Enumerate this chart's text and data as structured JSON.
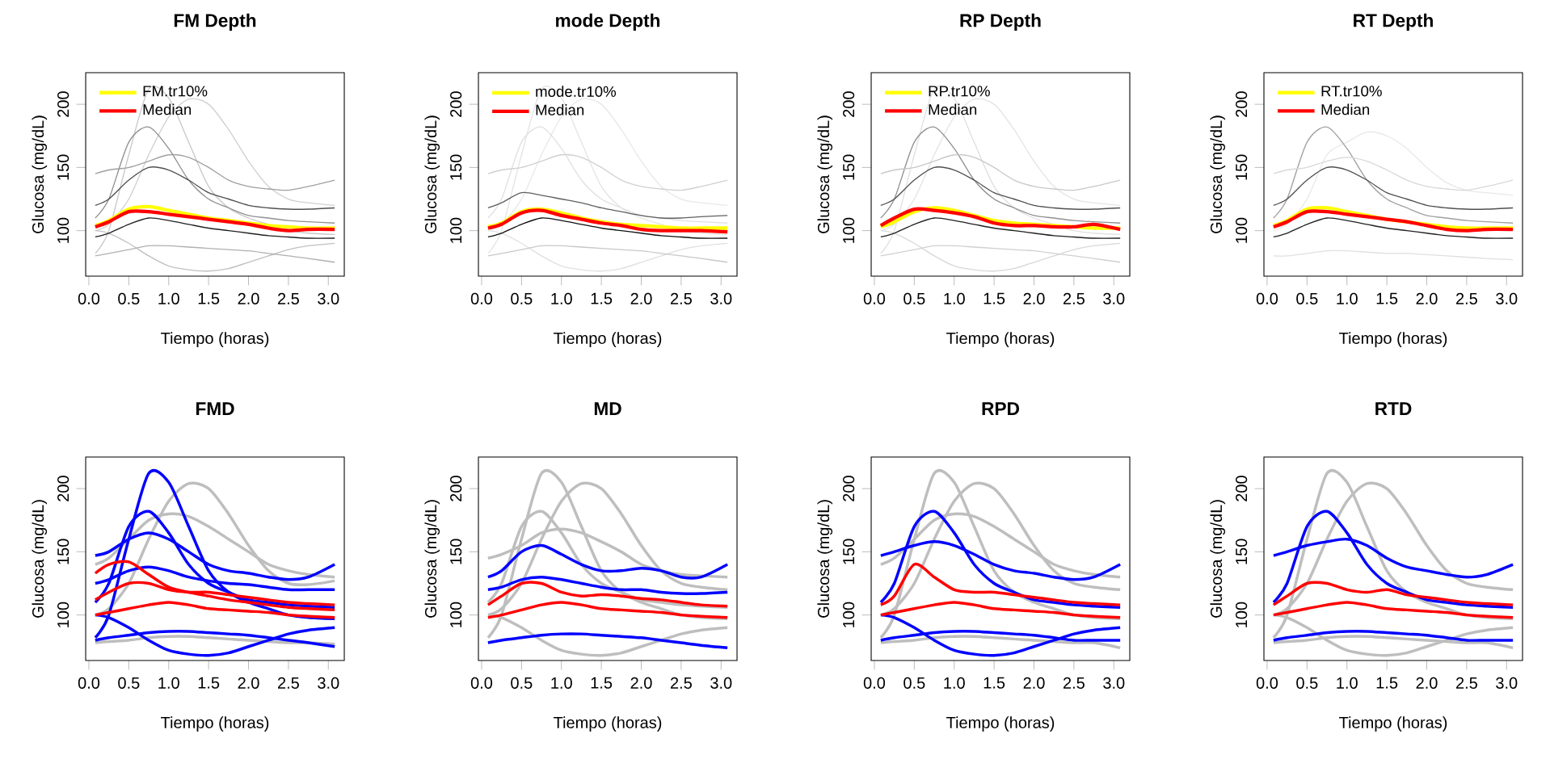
{
  "chart_data": [
    {
      "type": "line",
      "title": "FM Depth",
      "xlabel": "Tiempo (horas)",
      "ylabel": "Glucosa (mg/dL)",
      "xlim": [
        -0.04,
        3.2
      ],
      "ylim": [
        64,
        225
      ],
      "xticks": [
        {
          "value": 0,
          "label": "0.0"
        },
        0.5,
        {
          "value": 1,
          "label": "1.0"
        },
        1.5,
        {
          "value": 2,
          "label": "2.0"
        },
        2.5,
        {
          "value": 3,
          "label": "3.0"
        }
      ],
      "yticks": [
        100,
        150,
        200
      ],
      "legend": "top left",
      "x": [
        0.08,
        0.25,
        0.5,
        0.75,
        1.0,
        1.25,
        1.5,
        1.75,
        2.0,
        2.25,
        2.5,
        2.75,
        3.08
      ],
      "series": [
        {
          "color": "#c8c8c8",
          "values": [
            82,
            100,
            160,
            212,
            205,
            170,
            135,
            118,
            110,
            105,
            100,
            98,
            97
          ]
        },
        {
          "color": "#d0d0d0",
          "values": [
            100,
            105,
            125,
            160,
            190,
            204,
            200,
            180,
            155,
            135,
            125,
            122,
            120
          ]
        },
        {
          "color": "#c0c0c0",
          "values": [
            100,
            98,
            90,
            80,
            72,
            69,
            68,
            70,
            75,
            80,
            85,
            88,
            90
          ]
        },
        {
          "color": "#909090",
          "values": [
            110,
            125,
            170,
            182,
            165,
            140,
            125,
            118,
            112,
            110,
            108,
            107,
            106
          ]
        },
        {
          "color": "#a0a0a0",
          "values": [
            145,
            148,
            150,
            155,
            160,
            158,
            150,
            140,
            135,
            133,
            132,
            135,
            140
          ]
        },
        {
          "color": "#b0b0b0",
          "values": [
            80,
            82,
            85,
            88,
            88,
            87,
            86,
            85,
            84,
            82,
            80,
            78,
            75
          ]
        },
        {
          "color": "#505050",
          "values": [
            120,
            125,
            140,
            150,
            148,
            140,
            130,
            125,
            120,
            118,
            117,
            117,
            118
          ]
        },
        {
          "color": "#202020",
          "values": [
            95,
            98,
            105,
            110,
            108,
            105,
            102,
            100,
            98,
            96,
            95,
            94,
            94
          ]
        },
        {
          "name": "FM.tr10%",
          "color": "#ffff00",
          "values": [
            104,
            108,
            117,
            119,
            116,
            113,
            110,
            108,
            106,
            104,
            103,
            102,
            102
          ]
        },
        {
          "name": "Median",
          "color": "#ff0000",
          "values": [
            103,
            107,
            115,
            115,
            113,
            111,
            109,
            107,
            105,
            102,
            100,
            101,
            101
          ]
        }
      ]
    },
    {
      "type": "line",
      "title": "mode Depth",
      "xlabel": "Tiempo (horas)",
      "ylabel": "Glucosa (mg/dL)",
      "xlim": [
        -0.04,
        3.2
      ],
      "ylim": [
        64,
        225
      ],
      "xticks": [
        {
          "value": 0,
          "label": "0.0"
        },
        0.5,
        {
          "value": 1,
          "label": "1.0"
        },
        1.5,
        {
          "value": 2,
          "label": "2.0"
        },
        2.5,
        {
          "value": 3,
          "label": "3.0"
        }
      ],
      "yticks": [
        100,
        150,
        200
      ],
      "legend": "top left",
      "x": [
        0.08,
        0.25,
        0.5,
        0.75,
        1.0,
        1.25,
        1.5,
        1.75,
        2.0,
        2.25,
        2.5,
        2.75,
        3.08
      ],
      "series": [
        {
          "color": "#e4e4e4",
          "values": [
            82,
            100,
            160,
            212,
            205,
            170,
            135,
            118,
            110,
            105,
            100,
            98,
            97
          ]
        },
        {
          "color": "#e8e8e8",
          "values": [
            100,
            105,
            125,
            160,
            190,
            204,
            200,
            180,
            155,
            135,
            125,
            122,
            120
          ]
        },
        {
          "color": "#e0e0e0",
          "values": [
            100,
            98,
            90,
            80,
            72,
            69,
            68,
            70,
            75,
            80,
            85,
            88,
            90
          ]
        },
        {
          "color": "#e0e0e0",
          "values": [
            110,
            125,
            170,
            182,
            165,
            140,
            125,
            118,
            112,
            110,
            108,
            107,
            106
          ]
        },
        {
          "color": "#d0d0d0",
          "values": [
            145,
            148,
            150,
            155,
            160,
            158,
            150,
            140,
            135,
            133,
            132,
            135,
            140
          ]
        },
        {
          "color": "#c8c8c8",
          "values": [
            80,
            82,
            85,
            88,
            88,
            87,
            86,
            85,
            84,
            82,
            80,
            78,
            75
          ]
        },
        {
          "color": "#606060",
          "values": [
            118,
            122,
            130,
            128,
            125,
            122,
            118,
            115,
            112,
            110,
            110,
            111,
            112
          ]
        },
        {
          "color": "#101010",
          "values": [
            95,
            98,
            105,
            110,
            108,
            105,
            102,
            100,
            98,
            96,
            95,
            94,
            94
          ]
        },
        {
          "name": "mode.tr10%",
          "color": "#ffff00",
          "values": [
            103,
            106,
            115,
            117,
            114,
            110,
            107,
            105,
            104,
            103,
            102,
            102,
            102
          ]
        },
        {
          "name": "Median",
          "color": "#ff0000",
          "values": [
            102,
            105,
            114,
            116,
            112,
            109,
            106,
            104,
            101,
            100,
            100,
            100,
            99
          ]
        }
      ]
    },
    {
      "type": "line",
      "title": "RP Depth",
      "xlabel": "Tiempo (horas)",
      "ylabel": "Glucosa (mg/dL)",
      "xlim": [
        -0.04,
        3.2
      ],
      "ylim": [
        64,
        225
      ],
      "xticks": [
        {
          "value": 0,
          "label": "0.0"
        },
        0.5,
        {
          "value": 1,
          "label": "1.0"
        },
        1.5,
        {
          "value": 2,
          "label": "2.0"
        },
        2.5,
        {
          "value": 3,
          "label": "3.0"
        }
      ],
      "yticks": [
        100,
        150,
        200
      ],
      "legend": "top left",
      "x": [
        0.08,
        0.25,
        0.5,
        0.75,
        1.0,
        1.25,
        1.5,
        1.75,
        2.0,
        2.25,
        2.5,
        2.75,
        3.08
      ],
      "series": [
        {
          "color": "#e0e0e0",
          "values": [
            82,
            100,
            160,
            212,
            205,
            170,
            135,
            118,
            110,
            105,
            100,
            98,
            97
          ]
        },
        {
          "color": "#e4e4e4",
          "values": [
            100,
            105,
            125,
            160,
            190,
            204,
            200,
            180,
            155,
            135,
            125,
            122,
            120
          ]
        },
        {
          "color": "#d8d8d8",
          "values": [
            100,
            98,
            90,
            80,
            72,
            69,
            68,
            70,
            75,
            80,
            85,
            88,
            90
          ]
        },
        {
          "color": "#909090",
          "values": [
            110,
            125,
            170,
            182,
            165,
            140,
            125,
            118,
            112,
            110,
            108,
            107,
            106
          ]
        },
        {
          "color": "#c8c8c8",
          "values": [
            145,
            148,
            150,
            155,
            160,
            158,
            150,
            140,
            135,
            133,
            132,
            135,
            140
          ]
        },
        {
          "color": "#d0d0d0",
          "values": [
            80,
            82,
            85,
            88,
            88,
            87,
            86,
            85,
            84,
            82,
            80,
            78,
            75
          ]
        },
        {
          "color": "#505050",
          "values": [
            120,
            125,
            140,
            150,
            148,
            140,
            130,
            125,
            120,
            118,
            117,
            117,
            118
          ]
        },
        {
          "color": "#202020",
          "values": [
            95,
            98,
            105,
            110,
            108,
            105,
            102,
            100,
            98,
            96,
            95,
            94,
            94
          ]
        },
        {
          "name": "RP.tr10%",
          "color": "#ffff00",
          "values": [
            103,
            107,
            115,
            118,
            116,
            112,
            108,
            106,
            105,
            104,
            103,
            102,
            102
          ]
        },
        {
          "name": "Median",
          "color": "#ff0000",
          "values": [
            104,
            110,
            117,
            116,
            114,
            111,
            106,
            104,
            104,
            103,
            103,
            105,
            101
          ]
        }
      ]
    },
    {
      "type": "line",
      "title": "RT Depth",
      "xlabel": "Tiempo (horas)",
      "ylabel": "Glucosa (mg/dL)",
      "xlim": [
        -0.04,
        3.2
      ],
      "ylim": [
        64,
        225
      ],
      "xticks": [
        {
          "value": 0,
          "label": "0.0"
        },
        0.5,
        {
          "value": 1,
          "label": "1.0"
        },
        1.5,
        {
          "value": 2,
          "label": "2.0"
        },
        2.5,
        {
          "value": 3,
          "label": "3.0"
        }
      ],
      "yticks": [
        100,
        150,
        200
      ],
      "legend": "top left",
      "x": [
        0.08,
        0.25,
        0.5,
        0.75,
        1.0,
        1.25,
        1.5,
        1.75,
        2.0,
        2.25,
        2.5,
        2.75,
        3.08
      ],
      "series": [
        {
          "color": "#e8e8e8",
          "values": [
            100,
            105,
            125,
            160,
            170,
            178,
            175,
            165,
            150,
            138,
            132,
            130,
            128
          ]
        },
        {
          "color": "#a0a0a0",
          "values": [
            110,
            125,
            170,
            182,
            165,
            140,
            125,
            118,
            112,
            110,
            108,
            107,
            106
          ]
        },
        {
          "color": "#d8d8d8",
          "values": [
            145,
            148,
            150,
            155,
            158,
            155,
            148,
            140,
            135,
            133,
            132,
            135,
            140
          ]
        },
        {
          "color": "#e0e0e0",
          "values": [
            80,
            80,
            82,
            84,
            84,
            83,
            82,
            82,
            81,
            80,
            79,
            78,
            77
          ]
        },
        {
          "color": "#505050",
          "values": [
            120,
            125,
            140,
            150,
            148,
            140,
            130,
            125,
            120,
            118,
            117,
            117,
            118
          ]
        },
        {
          "color": "#202020",
          "values": [
            95,
            98,
            105,
            110,
            108,
            105,
            102,
            100,
            98,
            96,
            95,
            94,
            94
          ]
        },
        {
          "name": "RT.tr10%",
          "color": "#ffff00",
          "values": [
            104,
            108,
            117,
            118,
            115,
            112,
            109,
            107,
            105,
            103,
            102,
            102,
            102
          ]
        },
        {
          "name": "Median",
          "color": "#ff0000",
          "values": [
            103,
            107,
            115,
            115,
            113,
            111,
            109,
            107,
            104,
            101,
            100,
            101,
            101
          ]
        }
      ]
    },
    {
      "type": "line",
      "title": "FMD",
      "xlabel": "Tiempo (horas)",
      "ylabel": "Glucosa (mg/dL)",
      "xlim": [
        -0.04,
        3.2
      ],
      "ylim": [
        64,
        225
      ],
      "xticks": [
        {
          "value": 0,
          "label": "0.0"
        },
        0.5,
        {
          "value": 1,
          "label": "1.0"
        },
        1.5,
        {
          "value": 2,
          "label": "2.0"
        },
        2.5,
        {
          "value": 3,
          "label": "3.0"
        }
      ],
      "yticks": [
        100,
        150,
        200
      ],
      "x": [
        0.08,
        0.25,
        0.5,
        0.75,
        1.0,
        1.25,
        1.5,
        1.75,
        2.0,
        2.25,
        2.5,
        2.75,
        3.08
      ],
      "series": [
        {
          "color": "#bebebe",
          "values": [
            100,
            105,
            125,
            160,
            190,
            204,
            200,
            180,
            155,
            135,
            125,
            124,
            127
          ]
        },
        {
          "color": "#bebebe",
          "values": [
            140,
            145,
            160,
            175,
            180,
            178,
            170,
            160,
            150,
            140,
            135,
            132,
            130
          ]
        },
        {
          "color": "#bebebe",
          "values": [
            78,
            79,
            80,
            82,
            83,
            83,
            82,
            81,
            80,
            79,
            78,
            78,
            77
          ]
        },
        {
          "color": "#0000ff",
          "values": [
            82,
            100,
            160,
            212,
            205,
            170,
            135,
            118,
            110,
            105,
            100,
            98,
            97
          ]
        },
        {
          "color": "#0000ff",
          "values": [
            110,
            125,
            170,
            182,
            165,
            140,
            125,
            118,
            112,
            110,
            108,
            107,
            106
          ]
        },
        {
          "color": "#0000ff",
          "values": [
            100,
            98,
            90,
            80,
            72,
            69,
            68,
            70,
            75,
            80,
            85,
            88,
            90
          ]
        },
        {
          "color": "#0000ff",
          "values": [
            147,
            150,
            160,
            165,
            160,
            150,
            140,
            135,
            133,
            130,
            128,
            130,
            140
          ]
        },
        {
          "color": "#0000ff",
          "values": [
            80,
            82,
            84,
            86,
            87,
            87,
            86,
            85,
            84,
            82,
            80,
            78,
            75
          ]
        },
        {
          "color": "#0000ff",
          "values": [
            125,
            128,
            135,
            138,
            135,
            130,
            127,
            125,
            124,
            122,
            120,
            120,
            120
          ]
        },
        {
          "color": "#ff0000",
          "values": [
            133,
            140,
            142,
            132,
            122,
            118,
            115,
            112,
            110,
            108,
            106,
            105,
            104
          ]
        },
        {
          "color": "#ff0000",
          "values": [
            112,
            118,
            125,
            125,
            120,
            118,
            118,
            116,
            114,
            112,
            110,
            109,
            108
          ]
        },
        {
          "color": "#ff0000",
          "values": [
            100,
            102,
            105,
            108,
            110,
            108,
            105,
            104,
            103,
            102,
            100,
            99,
            98
          ]
        }
      ]
    },
    {
      "type": "line",
      "title": "MD",
      "xlabel": "Tiempo (horas)",
      "ylabel": "Glucosa (mg/dL)",
      "xlim": [
        -0.04,
        3.2
      ],
      "ylim": [
        64,
        225
      ],
      "xticks": [
        {
          "value": 0,
          "label": "0.0"
        },
        0.5,
        {
          "value": 1,
          "label": "1.0"
        },
        1.5,
        {
          "value": 2,
          "label": "2.0"
        },
        2.5,
        {
          "value": 3,
          "label": "3.0"
        }
      ],
      "yticks": [
        100,
        150,
        200
      ],
      "x": [
        0.08,
        0.25,
        0.5,
        0.75,
        1.0,
        1.25,
        1.5,
        1.75,
        2.0,
        2.25,
        2.5,
        2.75,
        3.08
      ],
      "series": [
        {
          "color": "#bebebe",
          "values": [
            82,
            100,
            160,
            212,
            205,
            170,
            135,
            118,
            110,
            105,
            100,
            98,
            97
          ]
        },
        {
          "color": "#bebebe",
          "values": [
            100,
            105,
            125,
            160,
            190,
            204,
            200,
            180,
            155,
            135,
            125,
            122,
            120
          ]
        },
        {
          "color": "#bebebe",
          "values": [
            110,
            125,
            170,
            182,
            165,
            140,
            125,
            118,
            112,
            110,
            108,
            107,
            106
          ]
        },
        {
          "color": "#bebebe",
          "values": [
            100,
            98,
            90,
            80,
            72,
            69,
            68,
            70,
            75,
            80,
            85,
            88,
            90
          ]
        },
        {
          "color": "#bebebe",
          "values": [
            145,
            148,
            155,
            165,
            168,
            165,
            158,
            150,
            140,
            135,
            132,
            131,
            130
          ]
        },
        {
          "color": "#0000ff",
          "values": [
            130,
            135,
            150,
            155,
            148,
            140,
            135,
            135,
            137,
            135,
            130,
            130,
            140
          ]
        },
        {
          "color": "#0000ff",
          "values": [
            78,
            80,
            82,
            84,
            85,
            85,
            84,
            83,
            82,
            80,
            78,
            76,
            74
          ]
        },
        {
          "color": "#0000ff",
          "values": [
            120,
            122,
            128,
            130,
            128,
            125,
            122,
            120,
            120,
            118,
            117,
            117,
            118
          ]
        },
        {
          "color": "#ff0000",
          "values": [
            108,
            115,
            125,
            125,
            118,
            115,
            116,
            115,
            113,
            112,
            110,
            108,
            107
          ]
        },
        {
          "color": "#ff0000",
          "values": [
            98,
            100,
            104,
            108,
            110,
            108,
            105,
            104,
            103,
            102,
            100,
            99,
            98
          ]
        }
      ]
    },
    {
      "type": "line",
      "title": "RPD",
      "xlabel": "Tiempo (horas)",
      "ylabel": "Glucosa (mg/dL)",
      "xlim": [
        -0.04,
        3.2
      ],
      "ylim": [
        64,
        225
      ],
      "xticks": [
        {
          "value": 0,
          "label": "0.0"
        },
        0.5,
        {
          "value": 1,
          "label": "1.0"
        },
        1.5,
        {
          "value": 2,
          "label": "2.0"
        },
        2.5,
        {
          "value": 3,
          "label": "3.0"
        }
      ],
      "yticks": [
        100,
        150,
        200
      ],
      "x": [
        0.08,
        0.25,
        0.5,
        0.75,
        1.0,
        1.25,
        1.5,
        1.75,
        2.0,
        2.25,
        2.5,
        2.75,
        3.08
      ],
      "series": [
        {
          "color": "#bebebe",
          "values": [
            82,
            100,
            160,
            212,
            205,
            170,
            135,
            118,
            110,
            105,
            100,
            98,
            97
          ]
        },
        {
          "color": "#bebebe",
          "values": [
            100,
            105,
            125,
            160,
            190,
            204,
            200,
            180,
            155,
            135,
            125,
            122,
            120
          ]
        },
        {
          "color": "#bebebe",
          "values": [
            140,
            145,
            160,
            175,
            180,
            178,
            170,
            160,
            150,
            140,
            135,
            132,
            130
          ]
        },
        {
          "color": "#bebebe",
          "values": [
            78,
            79,
            80,
            82,
            83,
            83,
            82,
            81,
            80,
            79,
            78,
            78,
            74
          ]
        },
        {
          "color": "#0000ff",
          "values": [
            110,
            125,
            170,
            182,
            165,
            140,
            125,
            118,
            112,
            110,
            108,
            107,
            106
          ]
        },
        {
          "color": "#0000ff",
          "values": [
            100,
            98,
            90,
            80,
            72,
            69,
            68,
            70,
            75,
            80,
            85,
            88,
            90
          ]
        },
        {
          "color": "#0000ff",
          "values": [
            147,
            150,
            155,
            158,
            155,
            148,
            140,
            135,
            133,
            130,
            128,
            130,
            140
          ]
        },
        {
          "color": "#0000ff",
          "values": [
            80,
            82,
            84,
            86,
            87,
            87,
            86,
            85,
            84,
            82,
            80,
            80,
            80
          ]
        },
        {
          "color": "#ff0000",
          "values": [
            108,
            115,
            140,
            130,
            120,
            118,
            118,
            116,
            114,
            112,
            110,
            109,
            108
          ]
        },
        {
          "color": "#ff0000",
          "values": [
            100,
            102,
            105,
            108,
            110,
            108,
            105,
            104,
            103,
            102,
            100,
            99,
            98
          ]
        }
      ]
    },
    {
      "type": "line",
      "title": "RTD",
      "xlabel": "Tiempo (horas)",
      "ylabel": "Glucosa (mg/dL)",
      "xlim": [
        -0.04,
        3.2
      ],
      "ylim": [
        64,
        225
      ],
      "xticks": [
        {
          "value": 0,
          "label": "0.0"
        },
        0.5,
        {
          "value": 1,
          "label": "1.0"
        },
        1.5,
        {
          "value": 2,
          "label": "2.0"
        },
        2.5,
        {
          "value": 3,
          "label": "3.0"
        }
      ],
      "yticks": [
        100,
        150,
        200
      ],
      "x": [
        0.08,
        0.25,
        0.5,
        0.75,
        1.0,
        1.25,
        1.5,
        1.75,
        2.0,
        2.25,
        2.5,
        2.75,
        3.08
      ],
      "series": [
        {
          "color": "#bebebe",
          "values": [
            82,
            100,
            160,
            212,
            205,
            170,
            135,
            118,
            110,
            105,
            100,
            98,
            97
          ]
        },
        {
          "color": "#bebebe",
          "values": [
            100,
            105,
            125,
            160,
            190,
            204,
            200,
            180,
            155,
            135,
            125,
            122,
            120
          ]
        },
        {
          "color": "#bebebe",
          "values": [
            100,
            98,
            90,
            80,
            72,
            69,
            68,
            70,
            75,
            80,
            85,
            88,
            90
          ]
        },
        {
          "color": "#bebebe",
          "values": [
            78,
            79,
            80,
            82,
            83,
            83,
            82,
            81,
            80,
            79,
            78,
            78,
            74
          ]
        },
        {
          "color": "#0000ff",
          "values": [
            110,
            125,
            170,
            182,
            165,
            140,
            125,
            118,
            112,
            110,
            108,
            107,
            106
          ]
        },
        {
          "color": "#0000ff",
          "values": [
            147,
            150,
            155,
            158,
            160,
            155,
            145,
            138,
            135,
            132,
            130,
            132,
            140
          ]
        },
        {
          "color": "#0000ff",
          "values": [
            80,
            82,
            84,
            86,
            87,
            87,
            86,
            85,
            84,
            82,
            80,
            80,
            80
          ]
        },
        {
          "color": "#ff0000",
          "values": [
            108,
            115,
            125,
            125,
            120,
            118,
            120,
            116,
            114,
            112,
            110,
            109,
            108
          ]
        },
        {
          "color": "#ff0000",
          "values": [
            100,
            102,
            105,
            108,
            110,
            108,
            105,
            104,
            103,
            102,
            100,
            99,
            98
          ]
        }
      ]
    }
  ]
}
